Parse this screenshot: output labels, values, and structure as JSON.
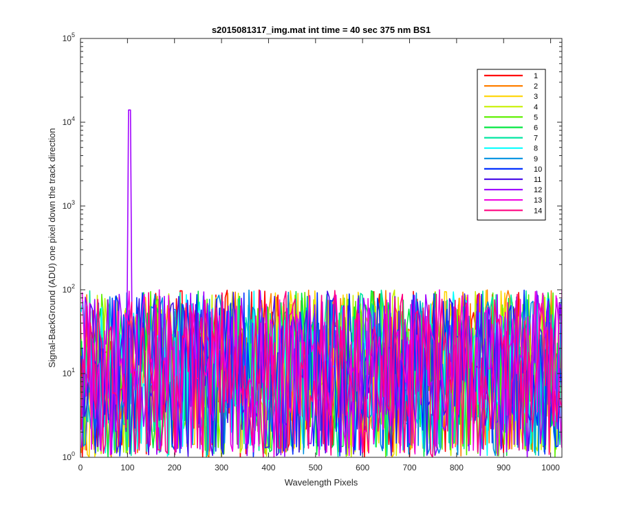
{
  "chart_data": {
    "type": "line",
    "title": "s2015081317_img.mat int time = 40 sec  375 nm BS1",
    "xlabel": "Wavelength Pixels",
    "ylabel": "Signal-BackGround (ADU) one pixel down the track direction",
    "xlim": [
      0,
      1024
    ],
    "ylim": [
      1,
      100000
    ],
    "yscale": "log",
    "xticks": [
      "0",
      "100",
      "200",
      "300",
      "400",
      "500",
      "600",
      "700",
      "800",
      "900",
      "1000"
    ],
    "yticks": [
      {
        "base": "10",
        "exp": "0"
      },
      {
        "base": "10",
        "exp": "1"
      },
      {
        "base": "10",
        "exp": "2"
      },
      {
        "base": "10",
        "exp": "3"
      },
      {
        "base": "10",
        "exp": "4"
      },
      {
        "base": "10",
        "exp": "5"
      }
    ],
    "legend_position": "top-right",
    "noise_level": {
      "floor": 1,
      "typical_max": 100
    },
    "peak": {
      "series": "12",
      "x": 106,
      "y": 14000
    },
    "series": [
      {
        "name": "1",
        "color": "#ff0000"
      },
      {
        "name": "2",
        "color": "#ff7f00"
      },
      {
        "name": "3",
        "color": "#ffd400"
      },
      {
        "name": "4",
        "color": "#c8f000"
      },
      {
        "name": "5",
        "color": "#5ef000"
      },
      {
        "name": "6",
        "color": "#00e640"
      },
      {
        "name": "7",
        "color": "#00e6a0"
      },
      {
        "name": "8",
        "color": "#00ffff"
      },
      {
        "name": "9",
        "color": "#0090e0"
      },
      {
        "name": "10",
        "color": "#0030ff"
      },
      {
        "name": "11",
        "color": "#4a10e8"
      },
      {
        "name": "12",
        "color": "#a000ff"
      },
      {
        "name": "13",
        "color": "#f000e0"
      },
      {
        "name": "14",
        "color": "#ff0080"
      }
    ]
  }
}
